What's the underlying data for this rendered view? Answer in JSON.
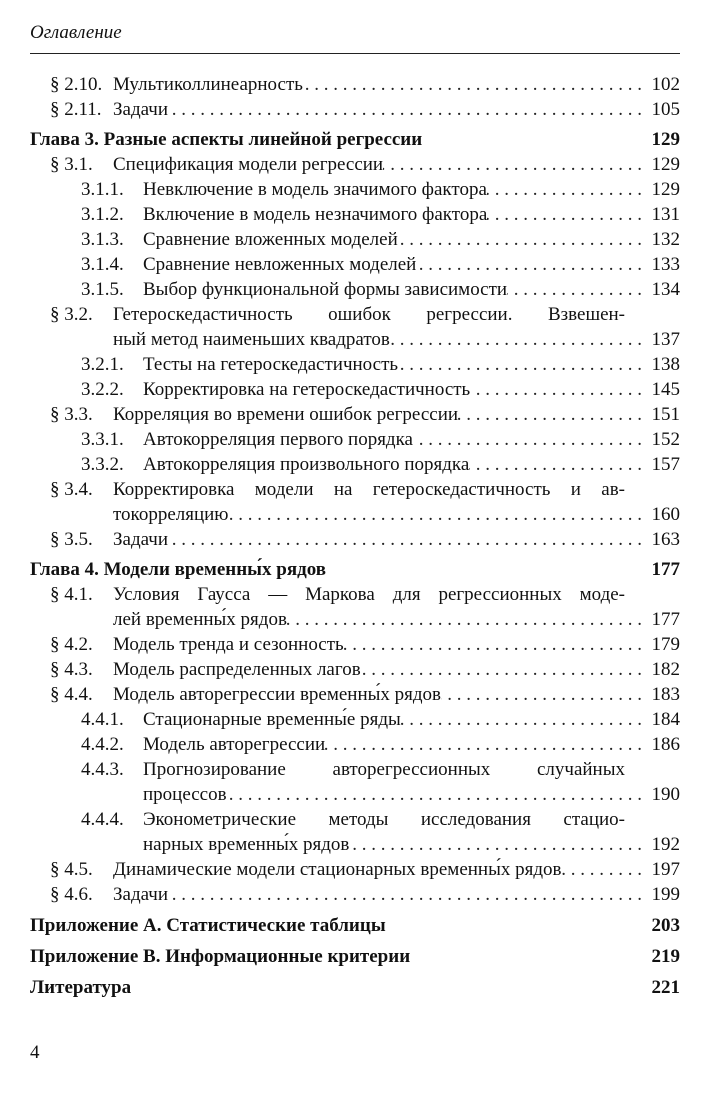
{
  "header": {
    "running_title": "Оглавление"
  },
  "entries": [
    {
      "level": "section",
      "num": "§ 2.10.",
      "lines": [
        "Мультиколлинеарность"
      ],
      "page": "102"
    },
    {
      "level": "section",
      "num": "§ 2.11.",
      "lines": [
        "Задачи"
      ],
      "page": "105"
    },
    {
      "level": "chapter",
      "num": "",
      "lines": [
        "Глава 3. Разные аспекты линейной регрессии"
      ],
      "page": "129"
    },
    {
      "level": "section",
      "num": "§ 3.1.",
      "lines": [
        "Спецификация модели регрессии"
      ],
      "page": "129"
    },
    {
      "level": "subsection",
      "num": "3.1.1.",
      "lines": [
        "Невключение в модель значимого фактора"
      ],
      "page": "129"
    },
    {
      "level": "subsection",
      "num": "3.1.2.",
      "lines": [
        "Включение в модель незначимого фактора"
      ],
      "page": "131"
    },
    {
      "level": "subsection",
      "num": "3.1.3.",
      "lines": [
        "Сравнение вложенных моделей"
      ],
      "page": "132"
    },
    {
      "level": "subsection",
      "num": "3.1.4.",
      "lines": [
        "Сравнение невложенных моделей"
      ],
      "page": "133"
    },
    {
      "level": "subsection",
      "num": "3.1.5.",
      "lines": [
        "Выбор функциональной формы зависимости"
      ],
      "page": "134"
    },
    {
      "level": "section",
      "num": "§ 3.2.",
      "lines": [
        "Гетероскедастичность ошибок регрессии. Взвешен-",
        "ный метод наименьших квадратов"
      ],
      "page": "137"
    },
    {
      "level": "subsection",
      "num": "3.2.1.",
      "lines": [
        "Тесты на гетероскедастичность"
      ],
      "page": "138"
    },
    {
      "level": "subsection",
      "num": "3.2.2.",
      "lines": [
        "Корректировка на гетероскедастичность"
      ],
      "page": "145"
    },
    {
      "level": "section",
      "num": "§ 3.3.",
      "lines": [
        "Корреляция во времени ошибок регрессии"
      ],
      "page": "151"
    },
    {
      "level": "subsection",
      "num": "3.3.1.",
      "lines": [
        "Автокорреляция первого порядка"
      ],
      "page": "152"
    },
    {
      "level": "subsection",
      "num": "3.3.2.",
      "lines": [
        "Автокорреляция произвольного порядка"
      ],
      "page": "157"
    },
    {
      "level": "section",
      "num": "§ 3.4.",
      "lines": [
        "Корректировка модели на гетероскедастичность и ав-",
        "токорреляцию"
      ],
      "page": "160"
    },
    {
      "level": "section",
      "num": "§ 3.5.",
      "lines": [
        "Задачи"
      ],
      "page": "163"
    },
    {
      "level": "chapter",
      "num": "",
      "lines": [
        "Глава 4. Модели временны́х рядов"
      ],
      "page": "177"
    },
    {
      "level": "section",
      "num": "§ 4.1.",
      "lines": [
        "Условия Гаусса — Маркова для регрессионных моде-",
        "лей временны́х рядов"
      ],
      "page": "177"
    },
    {
      "level": "section",
      "num": "§ 4.2.",
      "lines": [
        "Модель тренда и сезонность"
      ],
      "page": "179"
    },
    {
      "level": "section",
      "num": "§ 4.3.",
      "lines": [
        "Модель распределенных лагов"
      ],
      "page": "182"
    },
    {
      "level": "section",
      "num": "§ 4.4.",
      "lines": [
        "Модель авторегрессии временны́х рядов"
      ],
      "page": "183"
    },
    {
      "level": "subsection",
      "num": "4.4.1.",
      "lines": [
        "Стационарные временны́е ряды"
      ],
      "page": "184"
    },
    {
      "level": "subsection",
      "num": "4.4.2.",
      "lines": [
        "Модель авторегрессии"
      ],
      "page": "186"
    },
    {
      "level": "subsection",
      "num": "4.4.3.",
      "lines": [
        "Прогнозирование авторегрессионных случайных",
        "процессов"
      ],
      "page": "190"
    },
    {
      "level": "subsection",
      "num": "4.4.4.",
      "lines": [
        "Эконометрические методы исследования стацио-",
        "нарных временны́х рядов"
      ],
      "page": "192"
    },
    {
      "level": "section",
      "num": "§ 4.5.",
      "lines": [
        "Динамические модели стационарных временны́х рядов"
      ],
      "page": "197"
    },
    {
      "level": "section",
      "num": "§ 4.6.",
      "lines": [
        "Задачи"
      ],
      "page": "199"
    },
    {
      "level": "appendix",
      "num": "",
      "lines": [
        "Приложение A. Статистические таблицы"
      ],
      "page": "203"
    },
    {
      "level": "appendix",
      "num": "",
      "lines": [
        "Приложение B. Информационные критерии"
      ],
      "page": "219"
    },
    {
      "level": "appendix",
      "num": "",
      "lines": [
        "Литература"
      ],
      "page": "221"
    }
  ],
  "footer": {
    "page_number": "4"
  }
}
